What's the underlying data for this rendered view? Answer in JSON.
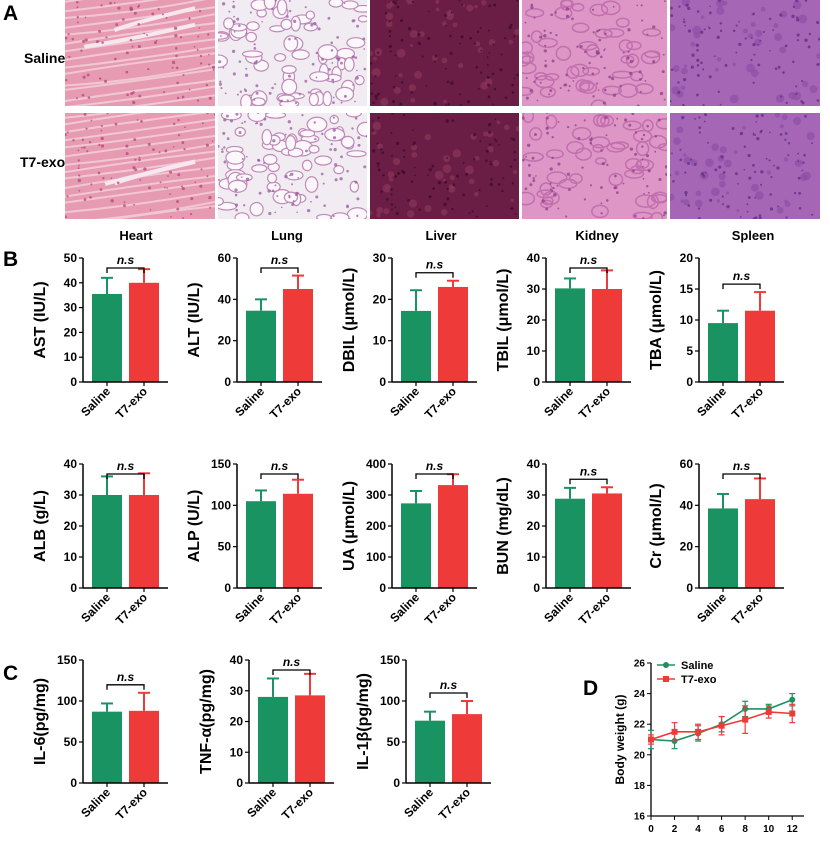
{
  "panels": {
    "a": "A",
    "b": "B",
    "c": "C",
    "d": "D"
  },
  "histology": {
    "rows": [
      "Saline",
      "T7-exo"
    ],
    "tissues": [
      {
        "tissue": "heart",
        "base": "#e79bb3",
        "fiber": "#f1c7d3",
        "dot": "#b4457a",
        "gap": "#f7e8ef"
      },
      {
        "tissue": "lung",
        "base": "#f1ecf2",
        "fiber": "#c08ab8",
        "dot": "#9b5a9f",
        "gap": "#fbf7fb"
      },
      {
        "tissue": "liver",
        "base": "#6a1d45",
        "fiber": "#8a3659",
        "dot": "#3a0c2a",
        "gap": "#7d2b51"
      },
      {
        "tissue": "kidney",
        "base": "#dd96c5",
        "fiber": "#c26fae",
        "dot": "#8e3e8a",
        "gap": "#eed2e4"
      },
      {
        "tissue": "spleen",
        "base": "#a466b5",
        "fiber": "#8e4ea6",
        "dot": "#5e2c84",
        "gap": "#c394c9"
      }
    ]
  },
  "organs": [
    "Heart",
    "Lung",
    "Liver",
    "Kidney",
    "Spleen"
  ],
  "colors": {
    "saline": "#1a9362",
    "t7exo": "#ef3a3a"
  },
  "chart_data": [
    {
      "type": "bar",
      "ylabel": "AST (IU/L)",
      "categories": [
        "Saline",
        "T7-exo"
      ],
      "values": [
        35.5,
        40
      ],
      "errors": [
        6.5,
        5.5
      ],
      "ylim": [
        0,
        50
      ],
      "yticks": [
        0,
        10,
        20,
        30,
        40,
        50
      ],
      "annotation": "n.s"
    },
    {
      "type": "bar",
      "ylabel": "ALT (IU/L)",
      "categories": [
        "Saline",
        "T7-exo"
      ],
      "values": [
        34.5,
        45
      ],
      "errors": [
        5.5,
        6.5
      ],
      "ylim": [
        0,
        60
      ],
      "yticks": [
        0,
        20,
        40,
        60
      ],
      "annotation": "n.s"
    },
    {
      "type": "bar",
      "ylabel": "DBIL (μmol/L)",
      "categories": [
        "Saline",
        "T7-exo"
      ],
      "values": [
        17.2,
        23
      ],
      "errors": [
        5,
        1.5
      ],
      "ylim": [
        0,
        30
      ],
      "yticks": [
        0,
        10,
        20,
        30
      ],
      "annotation": "n.s"
    },
    {
      "type": "bar",
      "ylabel": "TBIL (μmol/L)",
      "categories": [
        "Saline",
        "T7-exo"
      ],
      "values": [
        30.2,
        30
      ],
      "errors": [
        3.2,
        6
      ],
      "ylim": [
        0,
        40
      ],
      "yticks": [
        0,
        10,
        20,
        30,
        40
      ],
      "annotation": "n.s"
    },
    {
      "type": "bar",
      "ylabel": "TBA (μmol/L)",
      "categories": [
        "Saline",
        "T7-exo"
      ],
      "values": [
        9.5,
        11.5
      ],
      "errors": [
        2,
        3
      ],
      "ylim": [
        0,
        20
      ],
      "yticks": [
        0,
        5,
        10,
        15,
        20
      ],
      "annotation": "n.s"
    },
    {
      "type": "bar",
      "ylabel": "ALB (g/L)",
      "categories": [
        "Saline",
        "T7-exo"
      ],
      "values": [
        30,
        30
      ],
      "errors": [
        6,
        7
      ],
      "ylim": [
        0,
        40
      ],
      "yticks": [
        0,
        10,
        20,
        30,
        40
      ],
      "annotation": "n.s"
    },
    {
      "type": "bar",
      "ylabel": "ALP (U/L)",
      "categories": [
        "Saline",
        "T7-exo"
      ],
      "values": [
        105,
        114
      ],
      "errors": [
        13,
        17
      ],
      "ylim": [
        0,
        150
      ],
      "yticks": [
        0,
        50,
        100,
        150
      ],
      "annotation": "n.s"
    },
    {
      "type": "bar",
      "ylabel": "UA (μmol/L)",
      "categories": [
        "Saline",
        "T7-exo"
      ],
      "values": [
        273,
        332
      ],
      "errors": [
        40,
        35
      ],
      "ylim": [
        0,
        400
      ],
      "yticks": [
        0,
        100,
        200,
        300,
        400
      ],
      "annotation": "n.s"
    },
    {
      "type": "bar",
      "ylabel": "BUN (mg/dL)",
      "categories": [
        "Saline",
        "T7-exo"
      ],
      "values": [
        28.8,
        30.5
      ],
      "errors": [
        3.5,
        2
      ],
      "ylim": [
        0,
        40
      ],
      "yticks": [
        0,
        10,
        20,
        30,
        40
      ],
      "annotation": "n.s"
    },
    {
      "type": "bar",
      "ylabel": "Cr (μmol/L)",
      "categories": [
        "Saline",
        "T7-exo"
      ],
      "values": [
        38.5,
        43
      ],
      "errors": [
        7,
        10
      ],
      "ylim": [
        0,
        60
      ],
      "yticks": [
        0,
        20,
        40,
        60
      ],
      "annotation": "n.s"
    },
    {
      "type": "bar",
      "ylabel": "IL-6(pg/mg)",
      "categories": [
        "Saline",
        "T7-exo"
      ],
      "values": [
        87,
        88
      ],
      "errors": [
        10,
        22
      ],
      "ylim": [
        0,
        150
      ],
      "yticks": [
        0,
        50,
        100,
        150
      ],
      "annotation": "n.s"
    },
    {
      "type": "bar",
      "ylabel": "TNF-α(pg/mg)",
      "categories": [
        "Saline",
        "T7-exo"
      ],
      "values": [
        28,
        28.5
      ],
      "errors": [
        6,
        7
      ],
      "ylim": [
        0,
        40
      ],
      "yticks": [
        0,
        10,
        20,
        30,
        40
      ],
      "annotation": "n.s"
    },
    {
      "type": "bar",
      "ylabel": "IL-1β(pg/mg)",
      "categories": [
        "Saline",
        "T7-exo"
      ],
      "values": [
        76,
        84
      ],
      "errors": [
        11,
        16
      ],
      "ylim": [
        0,
        150
      ],
      "yticks": [
        0,
        50,
        100,
        150
      ],
      "annotation": "n.s"
    },
    {
      "type": "line",
      "ylabel": "Body weight (g)",
      "x": [
        0,
        2,
        4,
        6,
        8,
        10,
        12
      ],
      "xlim": [
        0,
        13
      ],
      "xticks": [
        0,
        2,
        4,
        6,
        8,
        10,
        12
      ],
      "ylim": [
        16,
        26
      ],
      "yticks": [
        16,
        18,
        20,
        22,
        24,
        26
      ],
      "legend": "top-left",
      "series": [
        {
          "name": "Saline",
          "values": [
            21,
            20.9,
            21.4,
            22,
            23,
            23,
            23.6
          ],
          "errors": [
            0.6,
            0.5,
            0.5,
            0.5,
            0.5,
            0.3,
            0.4
          ]
        },
        {
          "name": "T7-exo",
          "values": [
            21,
            21.5,
            21.5,
            21.9,
            22.3,
            22.8,
            22.7
          ],
          "errors": [
            0.3,
            0.6,
            0.5,
            0.6,
            0.9,
            0.4,
            0.6
          ]
        }
      ]
    }
  ]
}
